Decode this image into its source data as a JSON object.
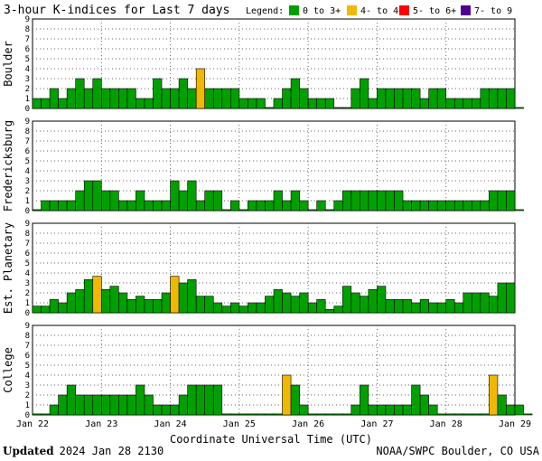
{
  "title": "3-hour K-indices for Last 7 days",
  "legend": {
    "label": "Legend:",
    "items": [
      {
        "label": "0 to 3+",
        "color": "#00a000"
      },
      {
        "label": "4- to 4+",
        "color": "#f0b800"
      },
      {
        "label": "5- to 6+",
        "color": "#ff0000"
      },
      {
        "label": "7- to 9",
        "color": "#500090"
      }
    ]
  },
  "chart_data": [
    {
      "type": "bar",
      "ylabel": "Boulder",
      "ylim": [
        0,
        9
      ],
      "x_ticks": [
        "Jan 22",
        "Jan 23",
        "Jan 24",
        "Jan 25",
        "Jan 26",
        "Jan 27",
        "Jan 28",
        "Jan 29"
      ],
      "values": [
        1,
        1,
        2,
        1,
        2,
        3,
        2,
        3,
        2,
        2,
        2,
        2,
        1,
        1,
        3,
        2,
        2,
        3,
        2,
        4,
        2,
        2,
        2,
        2,
        1,
        1,
        1,
        0.1,
        1,
        2,
        3,
        2,
        1,
        1,
        1,
        0.1,
        0.1,
        2,
        3,
        1,
        2,
        2,
        2,
        2,
        2,
        1,
        2,
        2,
        1,
        1,
        1,
        1,
        2,
        2,
        2,
        2,
        0.1
      ]
    },
    {
      "type": "bar",
      "ylabel": "Fredericksburg",
      "ylim": [
        0,
        9
      ],
      "x_ticks": [
        "Jan 22",
        "Jan 23",
        "Jan 24",
        "Jan 25",
        "Jan 26",
        "Jan 27",
        "Jan 28",
        "Jan 29"
      ],
      "values": [
        0.1,
        1,
        1,
        1,
        1,
        2,
        3,
        3,
        2,
        2,
        1,
        1,
        2,
        1,
        1,
        1,
        3,
        2,
        3,
        1,
        2,
        2,
        0.1,
        1,
        0.1,
        1,
        1,
        1,
        2,
        1,
        2,
        1,
        0.1,
        1,
        0.1,
        1,
        2,
        2,
        2,
        2,
        2,
        2,
        2,
        1,
        1,
        1,
        1,
        1,
        1,
        1,
        1,
        1,
        1,
        2,
        2,
        2,
        0.1
      ]
    },
    {
      "type": "bar",
      "ylabel": "Est. Planetary",
      "ylim": [
        0,
        9
      ],
      "x_ticks": [
        "Jan 22",
        "Jan 23",
        "Jan 24",
        "Jan 25",
        "Jan 26",
        "Jan 27",
        "Jan 28",
        "Jan 29"
      ],
      "values": [
        0.67,
        0.67,
        1.33,
        1,
        2,
        2.33,
        3.33,
        3.67,
        2.33,
        2.67,
        2,
        1.33,
        1.67,
        1.33,
        1.33,
        2,
        3.67,
        3,
        3.33,
        1.67,
        1.67,
        1,
        0.67,
        1,
        0.67,
        1,
        1,
        1.67,
        2.33,
        2,
        1.67,
        2,
        1,
        1.33,
        0.33,
        0.67,
        2.67,
        2,
        1.67,
        2.33,
        2.67,
        1.33,
        1.33,
        1.33,
        1,
        1.33,
        1,
        1,
        1.33,
        1,
        2,
        2,
        2,
        1.67,
        3,
        3
      ]
    },
    {
      "type": "bar",
      "ylabel": "College",
      "ylim": [
        0,
        9
      ],
      "x_ticks": [
        "Jan 22",
        "Jan 23",
        "Jan 24",
        "Jan 25",
        "Jan 26",
        "Jan 27",
        "Jan 28",
        "Jan 29"
      ],
      "values": [
        0.1,
        0.1,
        1,
        2,
        3,
        2,
        2,
        2,
        2,
        2,
        2,
        2,
        3,
        2,
        1,
        1,
        1,
        2,
        3,
        3,
        3,
        3,
        0.1,
        0.1,
        0.1,
        0.1,
        0.1,
        0.1,
        0.1,
        4,
        3,
        1,
        0.1,
        0.1,
        0.1,
        0.1,
        0.1,
        1,
        3,
        1,
        1,
        1,
        1,
        1,
        3,
        2,
        1,
        0.1,
        0.1,
        0.1,
        0.1,
        0.1,
        0.1,
        4,
        2,
        1,
        1,
        0.1
      ]
    }
  ],
  "xlabel": "Coordinate Universal Time (UTC)",
  "footer": {
    "updated_label": "Updated",
    "updated_value": "2024 Jan 28 2130",
    "source": "NOAA/SWPC Boulder, CO USA"
  }
}
